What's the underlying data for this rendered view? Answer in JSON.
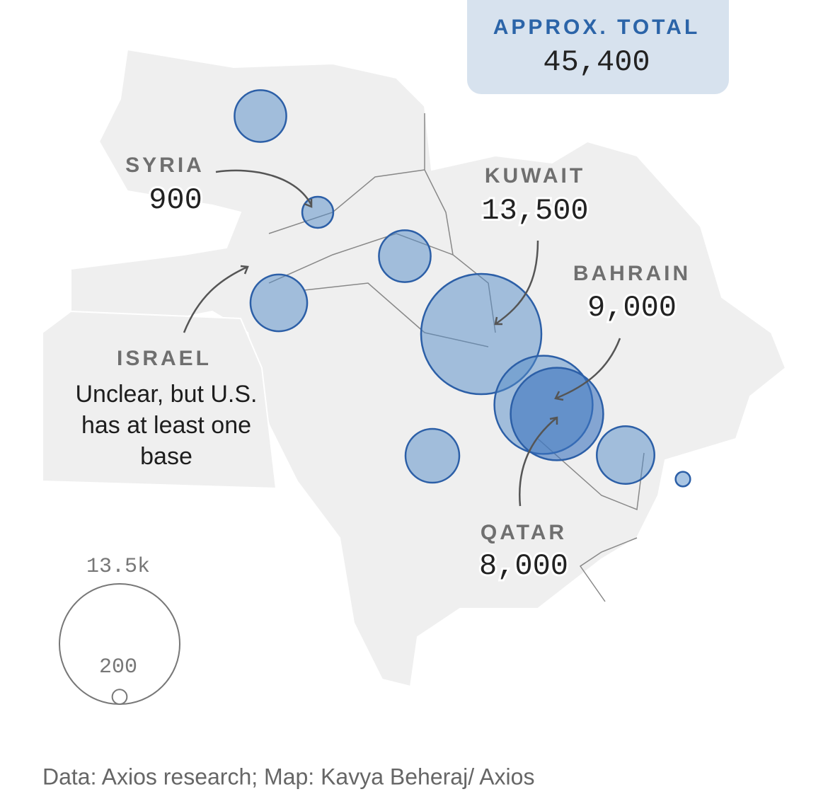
{
  "total": {
    "label": "APPROX. TOTAL",
    "value": "45,400"
  },
  "bubbles": [
    {
      "value": 2500
    },
    {
      "name": "SYRIA",
      "value": 900
    },
    {
      "value": 2500
    },
    {
      "value": 3000
    },
    {
      "name": "KUWAIT",
      "value": 13500,
      "value_label": "13,500"
    },
    {
      "name": "BAHRAIN",
      "value": 9000,
      "value_label": "9,000"
    },
    {
      "name": "QATAR",
      "value": 8000,
      "value_label": "8,000"
    },
    {
      "value": 2700
    },
    {
      "value": 3100
    },
    {
      "value": 200
    }
  ],
  "israel": {
    "name": "ISRAEL",
    "note": "Unclear, but U.S. has at least one base"
  },
  "legend": {
    "sizes": [
      {
        "value": 13500,
        "label": "13.5k"
      },
      200
    ]
  },
  "source": "Data: Axios research; Map: Kavya Beheraj/ Axios"
}
